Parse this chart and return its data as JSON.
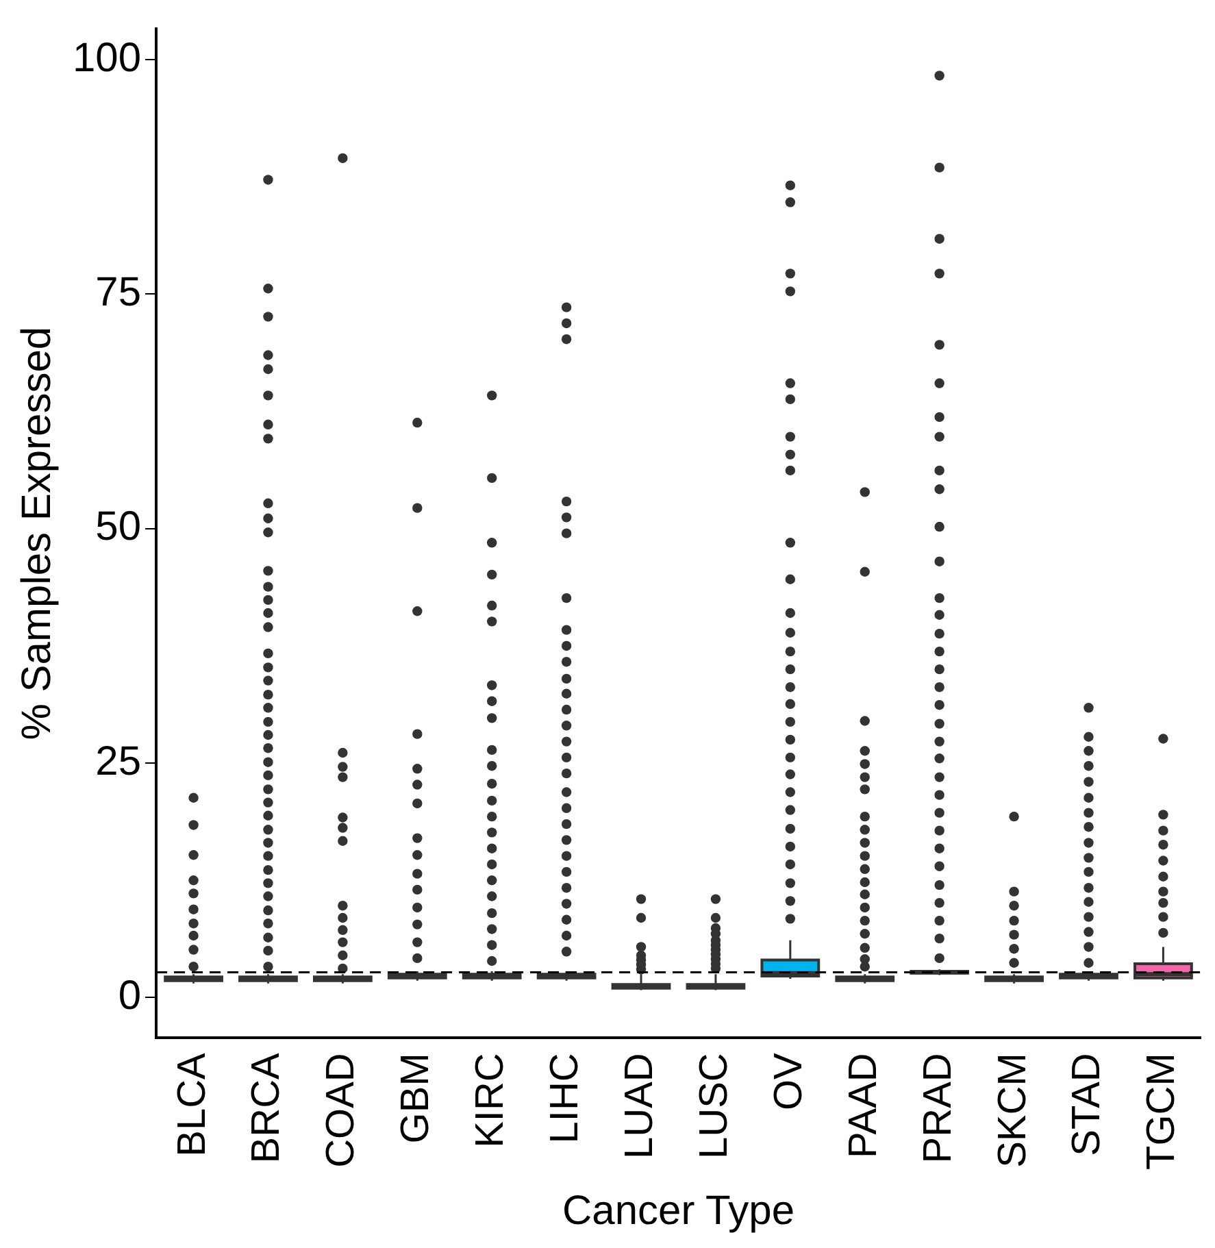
{
  "chart_data": {
    "type": "box",
    "xlabel": "Cancer Type",
    "ylabel": "% Samples Expressed",
    "categories": [
      "BLCA",
      "BRCA",
      "COAD",
      "GBM",
      "KIRC",
      "LIHC",
      "LUAD",
      "LUSC",
      "OV",
      "PAAD",
      "PRAD",
      "SKCM",
      "STAD",
      "TGCM"
    ],
    "colors": [
      "#ffffff",
      "#ffffff",
      "#ffffff",
      "#ffffff",
      "#ffffff",
      "#ffffff",
      "#ffffff",
      "#ffffff",
      "#00b4ef",
      "#ffffff",
      "#ffffff",
      "#ffffff",
      "#ffffff",
      "#f564a8"
    ],
    "boxes": [
      {
        "low": 1.5,
        "q1": 1.8,
        "median": 2.0,
        "q3": 2.2,
        "high": 2.5,
        "outliers": [
          21.3,
          18.4,
          15.2,
          12.5,
          11.1,
          9.4,
          7.9,
          6.6,
          5.1,
          3.3
        ]
      },
      {
        "low": 1.5,
        "q1": 1.8,
        "median": 2.0,
        "q3": 2.2,
        "high": 2.5,
        "outliers": [
          87.2,
          75.6,
          72.6,
          68.5,
          67.0,
          64.2,
          61.1,
          59.6,
          52.7,
          51.1,
          49.6,
          45.5,
          43.8,
          42.4,
          41.0,
          39.5,
          36.7,
          35.2,
          33.8,
          32.3,
          30.9,
          29.4,
          28.0,
          26.6,
          25.1,
          23.7,
          22.2,
          20.8,
          19.4,
          17.9,
          16.5,
          15.1,
          13.6,
          12.2,
          10.8,
          9.3,
          7.9,
          6.4,
          5.0,
          3.3
        ]
      },
      {
        "low": 1.5,
        "q1": 1.8,
        "median": 2.0,
        "q3": 2.2,
        "high": 2.5,
        "outliers": [
          89.5,
          26.1,
          24.6,
          23.5,
          19.2,
          18.1,
          16.7,
          9.8,
          8.5,
          7.2,
          5.9,
          4.5,
          3.1
        ]
      },
      {
        "low": 1.8,
        "q1": 2.1,
        "median": 2.3,
        "q3": 2.5,
        "high": 2.8,
        "outliers": [
          61.3,
          52.2,
          41.2,
          28.1,
          24.4,
          22.7,
          20.7,
          17.0,
          15.2,
          13.2,
          11.5,
          9.6,
          7.8,
          5.9,
          4.2
        ]
      },
      {
        "low": 1.8,
        "q1": 2.1,
        "median": 2.3,
        "q3": 2.5,
        "high": 2.8,
        "outliers": [
          64.2,
          55.4,
          48.5,
          45.1,
          41.8,
          40.1,
          33.3,
          31.6,
          29.8,
          26.4,
          24.7,
          22.8,
          21.0,
          19.3,
          17.6,
          15.9,
          14.2,
          12.5,
          10.8,
          9.0,
          7.3,
          5.6,
          3.9
        ]
      },
      {
        "low": 1.8,
        "q1": 2.1,
        "median": 2.3,
        "q3": 2.5,
        "high": 2.8,
        "outliers": [
          73.6,
          71.9,
          70.2,
          52.9,
          51.2,
          49.5,
          42.6,
          39.2,
          37.5,
          35.8,
          34.0,
          32.4,
          30.7,
          29.0,
          27.3,
          25.6,
          23.9,
          21.9,
          20.2,
          18.5,
          16.8,
          15.1,
          13.4,
          11.7,
          10.0,
          8.3,
          6.6,
          4.9
        ]
      },
      {
        "low": 0.8,
        "q1": 1.0,
        "median": 1.2,
        "q3": 1.4,
        "high": 2.5,
        "outliers": [
          10.5,
          8.5,
          5.4,
          4.5,
          4.0,
          3.5,
          3.0
        ]
      },
      {
        "low": 0.8,
        "q1": 1.0,
        "median": 1.2,
        "q3": 1.4,
        "high": 2.5,
        "outliers": [
          10.5,
          8.5,
          7.4,
          6.8,
          6.1,
          5.6,
          5.1,
          4.6,
          4.1,
          3.6,
          3.1
        ]
      },
      {
        "low": 2.0,
        "q1": 2.3,
        "median": 2.6,
        "q3": 4.0,
        "high": 6.1,
        "outliers": [
          86.6,
          84.8,
          77.2,
          75.3,
          65.5,
          63.8,
          59.8,
          57.9,
          56.2,
          48.5,
          44.6,
          41.0,
          38.9,
          36.9,
          35.0,
          33.1,
          31.3,
          29.4,
          27.5,
          25.6,
          23.8,
          21.9,
          20.0,
          18.0,
          16.1,
          14.2,
          12.2,
          10.3,
          8.4
        ]
      },
      {
        "low": 1.5,
        "q1": 1.8,
        "median": 2.0,
        "q3": 2.2,
        "high": 2.5,
        "outliers": [
          53.9,
          45.4,
          29.5,
          26.3,
          24.9,
          23.5,
          22.2,
          19.3,
          17.9,
          16.5,
          15.1,
          13.7,
          12.3,
          11.0,
          9.6,
          8.2,
          6.8,
          5.3,
          4.1,
          3.3
        ]
      },
      {
        "low": 2.4,
        "q1": 2.6,
        "median": 2.7,
        "q3": 2.8,
        "high": 3.0,
        "outliers": [
          98.3,
          88.5,
          80.9,
          77.2,
          69.6,
          65.5,
          61.9,
          59.8,
          56.2,
          54.2,
          50.2,
          46.5,
          42.6,
          40.8,
          38.8,
          36.9,
          35.0,
          33.1,
          31.2,
          29.2,
          27.3,
          25.5,
          23.5,
          21.6,
          19.7,
          17.8,
          15.9,
          14.0,
          12.0,
          10.1,
          8.2,
          6.3,
          4.2
        ]
      },
      {
        "low": 1.5,
        "q1": 1.8,
        "median": 2.0,
        "q3": 2.2,
        "high": 2.5,
        "outliers": [
          19.3,
          11.3,
          9.8,
          8.2,
          6.7,
          5.2,
          3.7
        ]
      },
      {
        "low": 1.8,
        "q1": 2.1,
        "median": 2.3,
        "q3": 2.5,
        "high": 2.8,
        "outliers": [
          30.9,
          27.8,
          26.3,
          24.7,
          23.0,
          21.3,
          19.7,
          18.2,
          16.5,
          14.9,
          13.4,
          11.7,
          10.2,
          8.6,
          7.0,
          5.4,
          3.7
        ]
      },
      {
        "low": 1.8,
        "q1": 2.1,
        "median": 2.5,
        "q3": 3.6,
        "high": 5.4,
        "outliers": [
          27.6,
          19.5,
          17.8,
          16.3,
          14.6,
          12.9,
          11.3,
          10.1,
          8.6,
          6.9
        ]
      }
    ],
    "ylim": [
      -4.3,
      103.3
    ],
    "yticks": [
      0,
      25,
      50,
      75,
      100
    ],
    "grid": false,
    "legend": false,
    "ref_lines": [
      {
        "axis": "y",
        "value": 2.7,
        "line_style": "dashed",
        "color": "#000000"
      }
    ]
  }
}
